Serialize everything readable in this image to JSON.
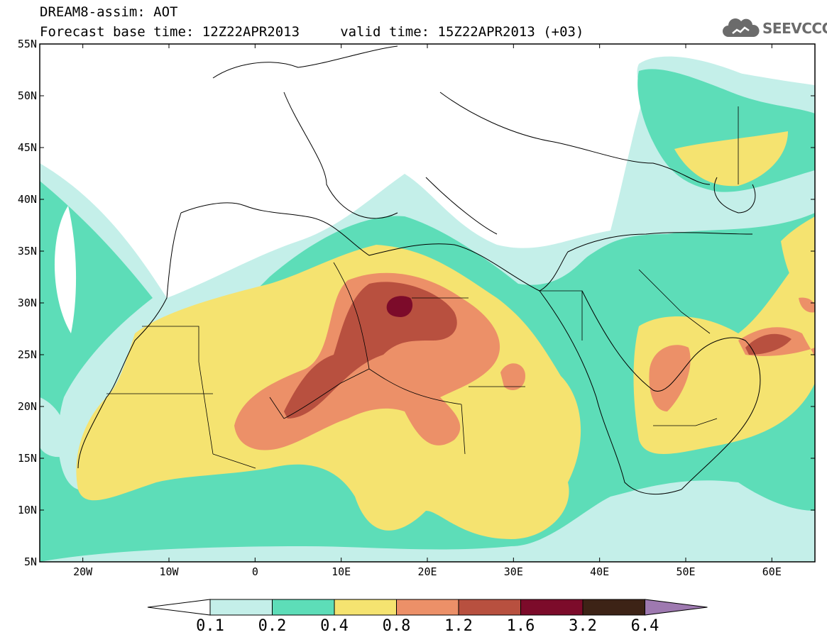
{
  "title": {
    "line1": "DREAM8-assim: AOT",
    "line2": "Forecast base time: 12Z22APR2013     valid time: 15Z22APR2013 (+03)"
  },
  "logo": {
    "text": "SEEVCCC",
    "icon": "cloud-icon"
  },
  "map": {
    "projection": "lat-lon",
    "lon_range": [
      -25,
      65
    ],
    "lat_range": [
      5,
      55
    ],
    "lon_ticks": [
      "20W",
      "10W",
      "0",
      "10E",
      "20E",
      "30E",
      "40E",
      "50E",
      "60E"
    ],
    "lat_ticks": [
      "5N",
      "10N",
      "15N",
      "20N",
      "25N",
      "30N",
      "35N",
      "40N",
      "45N",
      "50N",
      "55N"
    ],
    "features": [
      "coastlines",
      "country-borders"
    ]
  },
  "colorbar": {
    "levels": [
      "0.1",
      "0.2",
      "0.4",
      "0.8",
      "1.2",
      "1.6",
      "3.2",
      "6.4"
    ],
    "colors": [
      "#c4efe9",
      "#5dddb8",
      "#f5e370",
      "#ec9068",
      "#b8503f",
      "#7c0b2a",
      "#3d2316",
      "#9e79b0"
    ],
    "low_extend_color": "#ffffff"
  }
}
